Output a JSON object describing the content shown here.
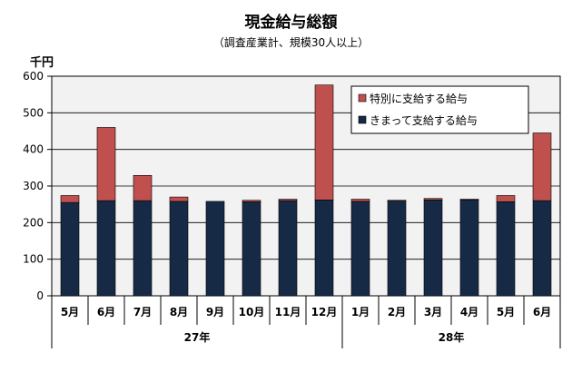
{
  "title": "現金給与総額",
  "subtitle": "（調査産業計、規模30人以上）",
  "unit": "千円",
  "colors": {
    "regular": "#172a45",
    "special": "#c0504d",
    "plot_bg": "#f2f2f2"
  },
  "chart_data": {
    "type": "bar",
    "stacked": true,
    "title": "現金給与総額",
    "subtitle": "（調査産業計、規模30人以上）",
    "ylabel": "千円",
    "ylim": [
      0,
      600
    ],
    "yticks": [
      0,
      100,
      200,
      300,
      400,
      500,
      600
    ],
    "grid": true,
    "legend_position": "top-right",
    "categories": [
      "5月",
      "6月",
      "7月",
      "8月",
      "9月",
      "10月",
      "11月",
      "12月",
      "1月",
      "2月",
      "3月",
      "4月",
      "5月",
      "6月"
    ],
    "groups": [
      {
        "label": "27年",
        "start": 0,
        "end": 7
      },
      {
        "label": "28年",
        "start": 8,
        "end": 13
      }
    ],
    "series": [
      {
        "name": "きまって支給する給与",
        "color": "#172a45",
        "values": [
          255,
          260,
          260,
          258,
          258,
          257,
          260,
          262,
          258,
          260,
          262,
          263,
          257,
          260
        ]
      },
      {
        "name": "特別に支給する給与",
        "color": "#c0504d",
        "values": [
          19,
          200,
          69,
          12,
          0,
          4,
          4,
          314,
          6,
          1,
          4,
          1,
          17,
          185
        ]
      }
    ]
  }
}
